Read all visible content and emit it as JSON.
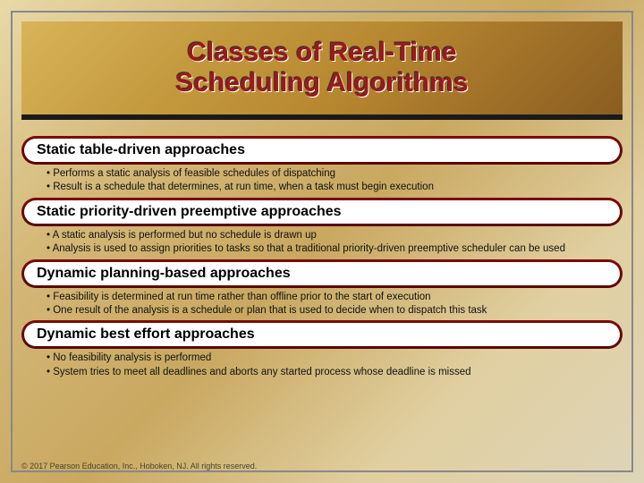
{
  "title": {
    "line1": "Classes of Real-Time",
    "line2": "Scheduling Algorithms",
    "color": "#9a1a1a",
    "fontsize": 30
  },
  "sections": [
    {
      "heading": "Static table-driven approaches",
      "bullets": [
        "Performs a static analysis of feasible schedules of dispatching",
        "Result is a schedule that determines, at run time, when a task must begin execution"
      ]
    },
    {
      "heading": "Static priority-driven preemptive approaches",
      "bullets": [
        "A static analysis is performed but no schedule is drawn up",
        "Analysis is used to assign priorities to tasks so that a traditional priority-driven preemptive scheduler can be used"
      ]
    },
    {
      "heading": "Dynamic planning-based approaches",
      "bullets": [
        "Feasibility is determined at run time rather than offline prior to the start of execution",
        "One result of the analysis is a schedule or plan that is used to decide when to dispatch this task"
      ]
    },
    {
      "heading": "Dynamic best effort approaches",
      "bullets": [
        "No feasibility analysis is performed",
        "System tries to meet all deadlines and aborts any started process whose deadline is missed"
      ]
    }
  ],
  "footer": "© 2017 Pearson Education, Inc., Hoboken, NJ. All rights reserved.",
  "colors": {
    "header_pill_bg": "#7c0a0a",
    "header_inner_bg": "#ffffff",
    "band_border": "#1a1a1a"
  }
}
